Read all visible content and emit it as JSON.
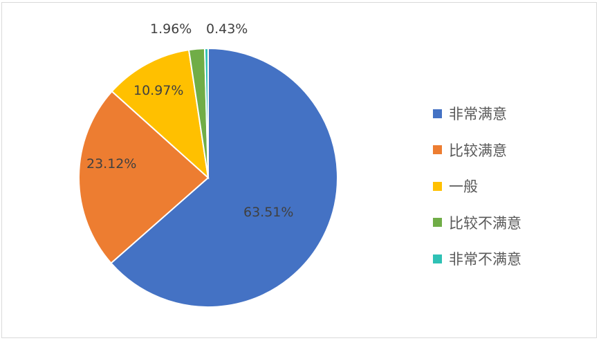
{
  "chart_data": {
    "type": "pie",
    "title": "",
    "categories": [
      "非常满意",
      "比较满意",
      "一般",
      "比较不满意",
      "非常不满意"
    ],
    "values": [
      63.51,
      23.12,
      10.97,
      1.96,
      0.43
    ],
    "labels": [
      "63.51%",
      "23.12%",
      "10.97%",
      "1.96%",
      "0.43%"
    ],
    "colors": [
      "#4472c4",
      "#ed7d31",
      "#ffc000",
      "#70ad47",
      "#2fc1b5"
    ],
    "legend_position": "right",
    "start_angle_deg": 0,
    "direction": "clockwise"
  },
  "legend": {
    "items": [
      {
        "label": "非常满意",
        "color": "#4472c4"
      },
      {
        "label": "比较满意",
        "color": "#ed7d31"
      },
      {
        "label": "一般",
        "color": "#ffc000"
      },
      {
        "label": "比较不满意",
        "color": "#70ad47"
      },
      {
        "label": "非常不满意",
        "color": "#2fc1b5"
      }
    ]
  }
}
